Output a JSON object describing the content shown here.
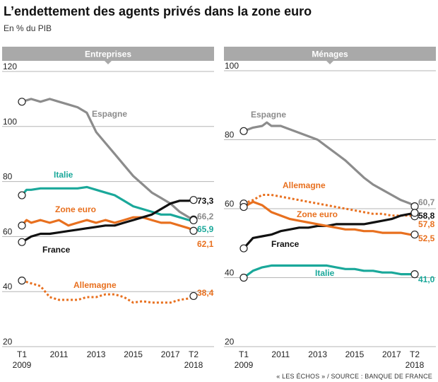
{
  "title": "L’endettement des agents privés dans la zone euro",
  "subtitle": "En % du PIB",
  "source": "« LES ÉCHOS » / SOURCE : BANQUE DE FRANCE",
  "colors": {
    "grey": "#8c8c8c",
    "teal": "#1aa89a",
    "orange": "#e8701f",
    "black": "#111111",
    "header_bg": "#a9a9a9"
  },
  "chart_data": [
    {
      "type": "line",
      "title": "Entreprises",
      "ylim": [
        20,
        120
      ],
      "yticks": [
        "20",
        "40",
        "60",
        "80",
        "100",
        "120"
      ],
      "xticks": [
        {
          "x": 2009.0,
          "top": "T1",
          "bottom": "2009"
        },
        {
          "x": 2011.0,
          "top": "2011",
          "bottom": ""
        },
        {
          "x": 2013.0,
          "top": "2013",
          "bottom": ""
        },
        {
          "x": 2015.0,
          "top": "2015",
          "bottom": ""
        },
        {
          "x": 2017.0,
          "top": "2017",
          "bottom": ""
        },
        {
          "x": 2018.25,
          "top": "T2",
          "bottom": "2018"
        }
      ],
      "series": [
        {
          "name": "Espagne",
          "color": "grey",
          "style": "solid",
          "end_label": "66,2",
          "points": [
            [
              2009.0,
              109
            ],
            [
              2009.5,
              110
            ],
            [
              2010.0,
              109
            ],
            [
              2010.5,
              110
            ],
            [
              2011.0,
              109
            ],
            [
              2011.5,
              108
            ],
            [
              2012.0,
              107
            ],
            [
              2012.5,
              105
            ],
            [
              2013.0,
              98
            ],
            [
              2013.5,
              94
            ],
            [
              2014.0,
              90
            ],
            [
              2014.5,
              86
            ],
            [
              2015.0,
              82
            ],
            [
              2015.5,
              79
            ],
            [
              2016.0,
              76
            ],
            [
              2016.5,
              74
            ],
            [
              2017.0,
              72
            ],
            [
              2017.5,
              69
            ],
            [
              2018.0,
              67
            ],
            [
              2018.25,
              66.2
            ]
          ]
        },
        {
          "name": "Italie",
          "color": "teal",
          "style": "solid",
          "end_label": "65,9",
          "points": [
            [
              2009.0,
              75
            ],
            [
              2009.25,
              77
            ],
            [
              2009.5,
              77
            ],
            [
              2010.0,
              77.5
            ],
            [
              2011.0,
              77.5
            ],
            [
              2012.0,
              77.5
            ],
            [
              2012.5,
              78
            ],
            [
              2013.0,
              77
            ],
            [
              2013.5,
              76
            ],
            [
              2014.0,
              75
            ],
            [
              2014.5,
              73
            ],
            [
              2015.0,
              71
            ],
            [
              2015.5,
              70
            ],
            [
              2016.0,
              69
            ],
            [
              2016.5,
              68
            ],
            [
              2017.0,
              68
            ],
            [
              2017.5,
              67
            ],
            [
              2018.0,
              66
            ],
            [
              2018.25,
              65.9
            ]
          ]
        },
        {
          "name": "Zone euro",
          "color": "orange",
          "style": "solid",
          "end_label": "62,1",
          "points": [
            [
              2009.0,
              64
            ],
            [
              2009.25,
              66
            ],
            [
              2009.5,
              65
            ],
            [
              2010.0,
              66
            ],
            [
              2010.5,
              65
            ],
            [
              2011.0,
              66
            ],
            [
              2011.5,
              64
            ],
            [
              2012.0,
              65
            ],
            [
              2012.5,
              66
            ],
            [
              2013.0,
              65
            ],
            [
              2013.5,
              66
            ],
            [
              2014.0,
              65
            ],
            [
              2014.5,
              66
            ],
            [
              2015.0,
              67
            ],
            [
              2015.5,
              67
            ],
            [
              2016.0,
              66
            ],
            [
              2016.5,
              65
            ],
            [
              2017.0,
              65
            ],
            [
              2017.5,
              64
            ],
            [
              2018.0,
              63
            ],
            [
              2018.25,
              62.1
            ]
          ]
        },
        {
          "name": "France",
          "color": "black",
          "style": "solid",
          "end_label": "73,3",
          "points": [
            [
              2009.0,
              58
            ],
            [
              2009.5,
              60
            ],
            [
              2010.0,
              61
            ],
            [
              2010.5,
              61
            ],
            [
              2011.0,
              61.5
            ],
            [
              2011.5,
              62
            ],
            [
              2012.0,
              62.5
            ],
            [
              2012.5,
              63
            ],
            [
              2013.0,
              63.5
            ],
            [
              2013.5,
              64
            ],
            [
              2014.0,
              64
            ],
            [
              2014.5,
              65
            ],
            [
              2015.0,
              66
            ],
            [
              2015.5,
              67
            ],
            [
              2016.0,
              68
            ],
            [
              2016.5,
              70
            ],
            [
              2017.0,
              72
            ],
            [
              2017.5,
              73
            ],
            [
              2018.0,
              73
            ],
            [
              2018.25,
              73.3
            ]
          ]
        },
        {
          "name": "Allemagne",
          "color": "orange",
          "style": "dotted",
          "end_label": "38,4",
          "points": [
            [
              2009.0,
              44
            ],
            [
              2009.5,
              43
            ],
            [
              2010.0,
              42
            ],
            [
              2010.5,
              38
            ],
            [
              2011.0,
              37
            ],
            [
              2011.5,
              37
            ],
            [
              2012.0,
              37
            ],
            [
              2012.5,
              38
            ],
            [
              2013.0,
              38
            ],
            [
              2013.5,
              39
            ],
            [
              2014.0,
              39
            ],
            [
              2014.5,
              38
            ],
            [
              2015.0,
              36
            ],
            [
              2015.5,
              36.5
            ],
            [
              2016.0,
              36
            ],
            [
              2016.5,
              36
            ],
            [
              2017.0,
              36
            ],
            [
              2017.5,
              37
            ],
            [
              2018.0,
              37.5
            ],
            [
              2018.25,
              38.4
            ]
          ]
        }
      ]
    },
    {
      "type": "line",
      "title": "Ménages",
      "ylim": [
        20,
        100
      ],
      "yticks": [
        "20",
        "40",
        "60",
        "80",
        "100"
      ],
      "xticks": [
        {
          "x": 2009.0,
          "top": "T1",
          "bottom": "2009"
        },
        {
          "x": 2011.0,
          "top": "2011",
          "bottom": ""
        },
        {
          "x": 2013.0,
          "top": "2013",
          "bottom": ""
        },
        {
          "x": 2015.0,
          "top": "2015",
          "bottom": ""
        },
        {
          "x": 2017.0,
          "top": "2017",
          "bottom": ""
        },
        {
          "x": 2018.25,
          "top": "T2",
          "bottom": "2018"
        }
      ],
      "series": [
        {
          "name": "Espagne",
          "color": "grey",
          "style": "solid",
          "end_label": "60,7",
          "points": [
            [
              2009.0,
              82.5
            ],
            [
              2009.5,
              83.5
            ],
            [
              2010.0,
              84
            ],
            [
              2010.25,
              85
            ],
            [
              2010.5,
              84
            ],
            [
              2011.0,
              84
            ],
            [
              2011.5,
              83
            ],
            [
              2012.0,
              82
            ],
            [
              2012.5,
              81
            ],
            [
              2013.0,
              80
            ],
            [
              2013.5,
              78
            ],
            [
              2014.0,
              76
            ],
            [
              2014.5,
              74
            ],
            [
              2015.0,
              71.5
            ],
            [
              2015.5,
              69
            ],
            [
              2016.0,
              67
            ],
            [
              2016.5,
              65.5
            ],
            [
              2017.0,
              64
            ],
            [
              2017.5,
              62.5
            ],
            [
              2018.0,
              61.5
            ],
            [
              2018.25,
              60.7
            ]
          ]
        },
        {
          "name": "Allemagne",
          "color": "orange",
          "style": "dotted",
          "end_label": "57,8",
          "points": [
            [
              2009.0,
              61.5
            ],
            [
              2009.5,
              62.5
            ],
            [
              2010.0,
              64
            ],
            [
              2010.5,
              64
            ],
            [
              2011.0,
              63.5
            ],
            [
              2011.5,
              63
            ],
            [
              2012.0,
              62.5
            ],
            [
              2012.5,
              62
            ],
            [
              2013.0,
              61.5
            ],
            [
              2013.5,
              61
            ],
            [
              2014.0,
              60.5
            ],
            [
              2014.5,
              60
            ],
            [
              2015.0,
              59.5
            ],
            [
              2015.5,
              59
            ],
            [
              2016.0,
              58.5
            ],
            [
              2016.5,
              58.5
            ],
            [
              2017.0,
              58
            ],
            [
              2017.5,
              58
            ],
            [
              2018.0,
              58
            ],
            [
              2018.25,
              57.8
            ]
          ]
        },
        {
          "name": "France",
          "color": "black",
          "style": "solid",
          "end_label": "58,8",
          "points": [
            [
              2009.0,
              48.5
            ],
            [
              2009.5,
              51.5
            ],
            [
              2010.0,
              52
            ],
            [
              2010.5,
              52.5
            ],
            [
              2011.0,
              53.5
            ],
            [
              2011.5,
              54
            ],
            [
              2012.0,
              54.5
            ],
            [
              2012.5,
              54.5
            ],
            [
              2013.0,
              55
            ],
            [
              2013.5,
              55
            ],
            [
              2014.0,
              55.5
            ],
            [
              2014.5,
              55.5
            ],
            [
              2015.0,
              55.5
            ],
            [
              2015.5,
              55.5
            ],
            [
              2016.0,
              56
            ],
            [
              2016.5,
              56.5
            ],
            [
              2017.0,
              57
            ],
            [
              2017.5,
              58
            ],
            [
              2018.0,
              58.5
            ],
            [
              2018.25,
              58.8
            ]
          ]
        },
        {
          "name": "Zone euro",
          "color": "orange",
          "style": "solid",
          "end_label": "52,5",
          "points": [
            [
              2009.0,
              60.5
            ],
            [
              2009.5,
              62
            ],
            [
              2010.0,
              61
            ],
            [
              2010.5,
              59
            ],
            [
              2011.0,
              58
            ],
            [
              2011.5,
              57
            ],
            [
              2012.0,
              56.5
            ],
            [
              2012.5,
              56
            ],
            [
              2013.0,
              55.5
            ],
            [
              2013.5,
              55
            ],
            [
              2014.0,
              54.5
            ],
            [
              2014.5,
              54
            ],
            [
              2015.0,
              54
            ],
            [
              2015.5,
              53.5
            ],
            [
              2016.0,
              53.5
            ],
            [
              2016.5,
              53
            ],
            [
              2017.0,
              53
            ],
            [
              2017.5,
              53
            ],
            [
              2018.0,
              52.5
            ],
            [
              2018.25,
              52.5
            ]
          ]
        },
        {
          "name": "Italie",
          "color": "teal",
          "style": "solid",
          "end_label": "41,0",
          "points": [
            [
              2009.0,
              40
            ],
            [
              2009.5,
              42
            ],
            [
              2010.0,
              43
            ],
            [
              2010.5,
              43.5
            ],
            [
              2011.0,
              43.5
            ],
            [
              2011.5,
              43.5
            ],
            [
              2012.0,
              43.5
            ],
            [
              2012.5,
              43.5
            ],
            [
              2013.0,
              43.5
            ],
            [
              2013.5,
              43.5
            ],
            [
              2014.0,
              43
            ],
            [
              2014.5,
              42.5
            ],
            [
              2015.0,
              42.5
            ],
            [
              2015.5,
              42
            ],
            [
              2016.0,
              42
            ],
            [
              2016.5,
              41.5
            ],
            [
              2017.0,
              41.5
            ],
            [
              2017.5,
              41
            ],
            [
              2018.0,
              41
            ],
            [
              2018.25,
              41.0
            ]
          ]
        }
      ]
    }
  ]
}
